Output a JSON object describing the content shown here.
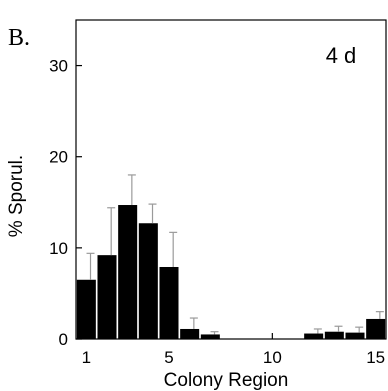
{
  "panel_label": "B.",
  "chart_data": {
    "type": "bar",
    "annotation": "4 d",
    "xlabel": "Colony Region",
    "ylabel": "% Sporul.",
    "x": [
      1,
      2,
      3,
      4,
      5,
      6,
      7,
      8,
      9,
      10,
      11,
      12,
      13,
      14,
      15
    ],
    "values": [
      6.5,
      9.2,
      14.7,
      12.7,
      7.9,
      1.1,
      0.5,
      0,
      0,
      0,
      0,
      0.6,
      0.8,
      0.7,
      2.2
    ],
    "error_upper": [
      9.4,
      14.4,
      18.0,
      14.8,
      11.7,
      2.3,
      0.8,
      0,
      0,
      0,
      0,
      1.1,
      1.4,
      1.3,
      3.0
    ],
    "xlim": [
      0.5,
      15.5
    ],
    "ylim": [
      0,
      35
    ],
    "xticks": [
      "1",
      "5",
      "10",
      "15"
    ],
    "yticks": [
      "0",
      "10",
      "20",
      "30"
    ],
    "grid": false,
    "color": "#000000"
  }
}
